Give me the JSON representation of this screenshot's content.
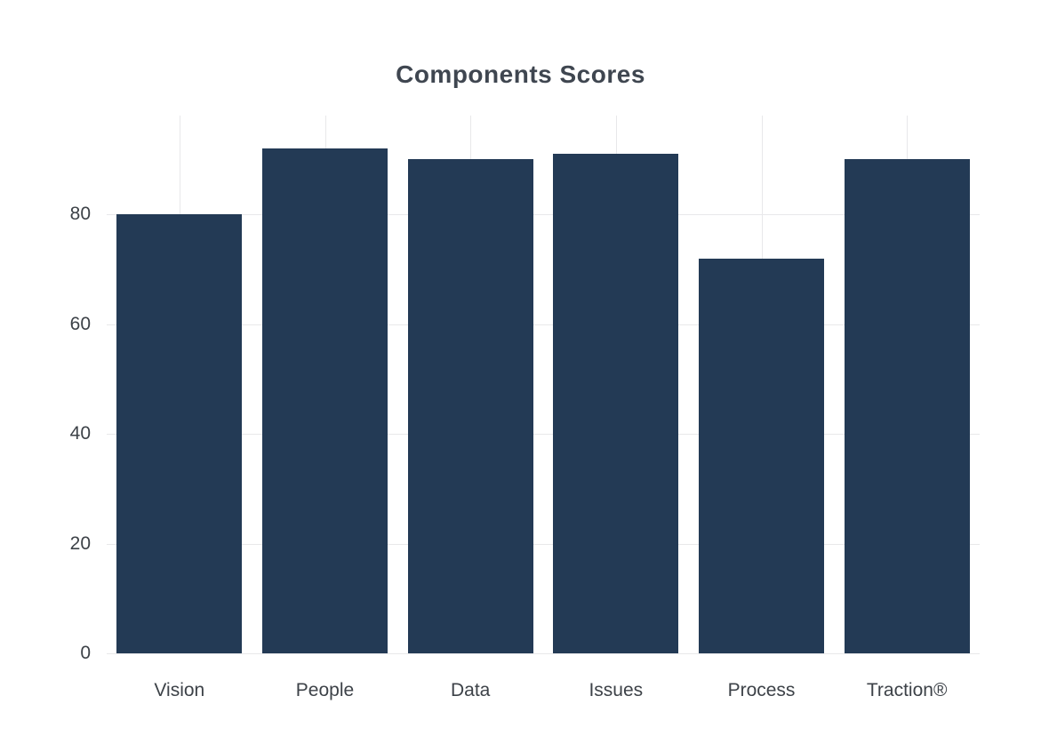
{
  "chart_data": {
    "type": "bar",
    "title": "Components Scores",
    "categories": [
      "Vision",
      "People",
      "Data",
      "Issues",
      "Process",
      "Traction®"
    ],
    "values": [
      80,
      92,
      90,
      91,
      72,
      90
    ],
    "xlabel": "",
    "ylabel": "",
    "ylim": [
      0,
      98
    ],
    "yticks": [
      0,
      20,
      40,
      60,
      80
    ],
    "grid": true,
    "legend": "none",
    "bar_color": "#233a55",
    "bar_width_fraction": 0.86,
    "background_color": "#ffffff",
    "gridline_color": "#e8e8ea"
  }
}
